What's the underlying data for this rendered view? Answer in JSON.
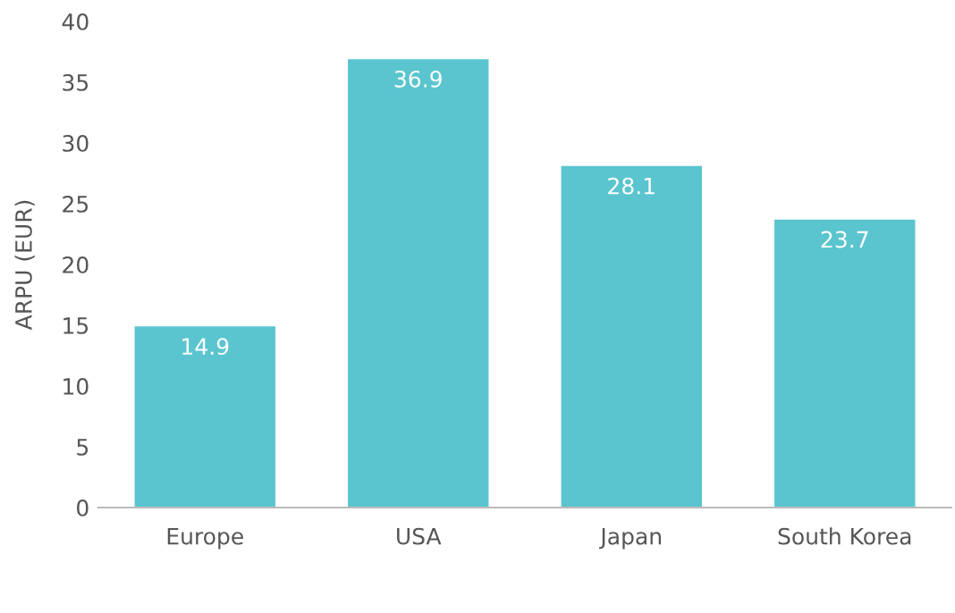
{
  "chart_data": {
    "type": "bar",
    "ylabel": "ARPU (EUR)",
    "categories": [
      "Europe",
      "USA",
      "Japan",
      "South Korea"
    ],
    "values": [
      14.9,
      36.9,
      28.1,
      23.7
    ],
    "color": "#5bc5cf",
    "ylim": [
      0,
      40
    ],
    "yticks": [
      0,
      5,
      10,
      15,
      20,
      25,
      30,
      35,
      40
    ],
    "grid": false,
    "data_labels": true
  }
}
